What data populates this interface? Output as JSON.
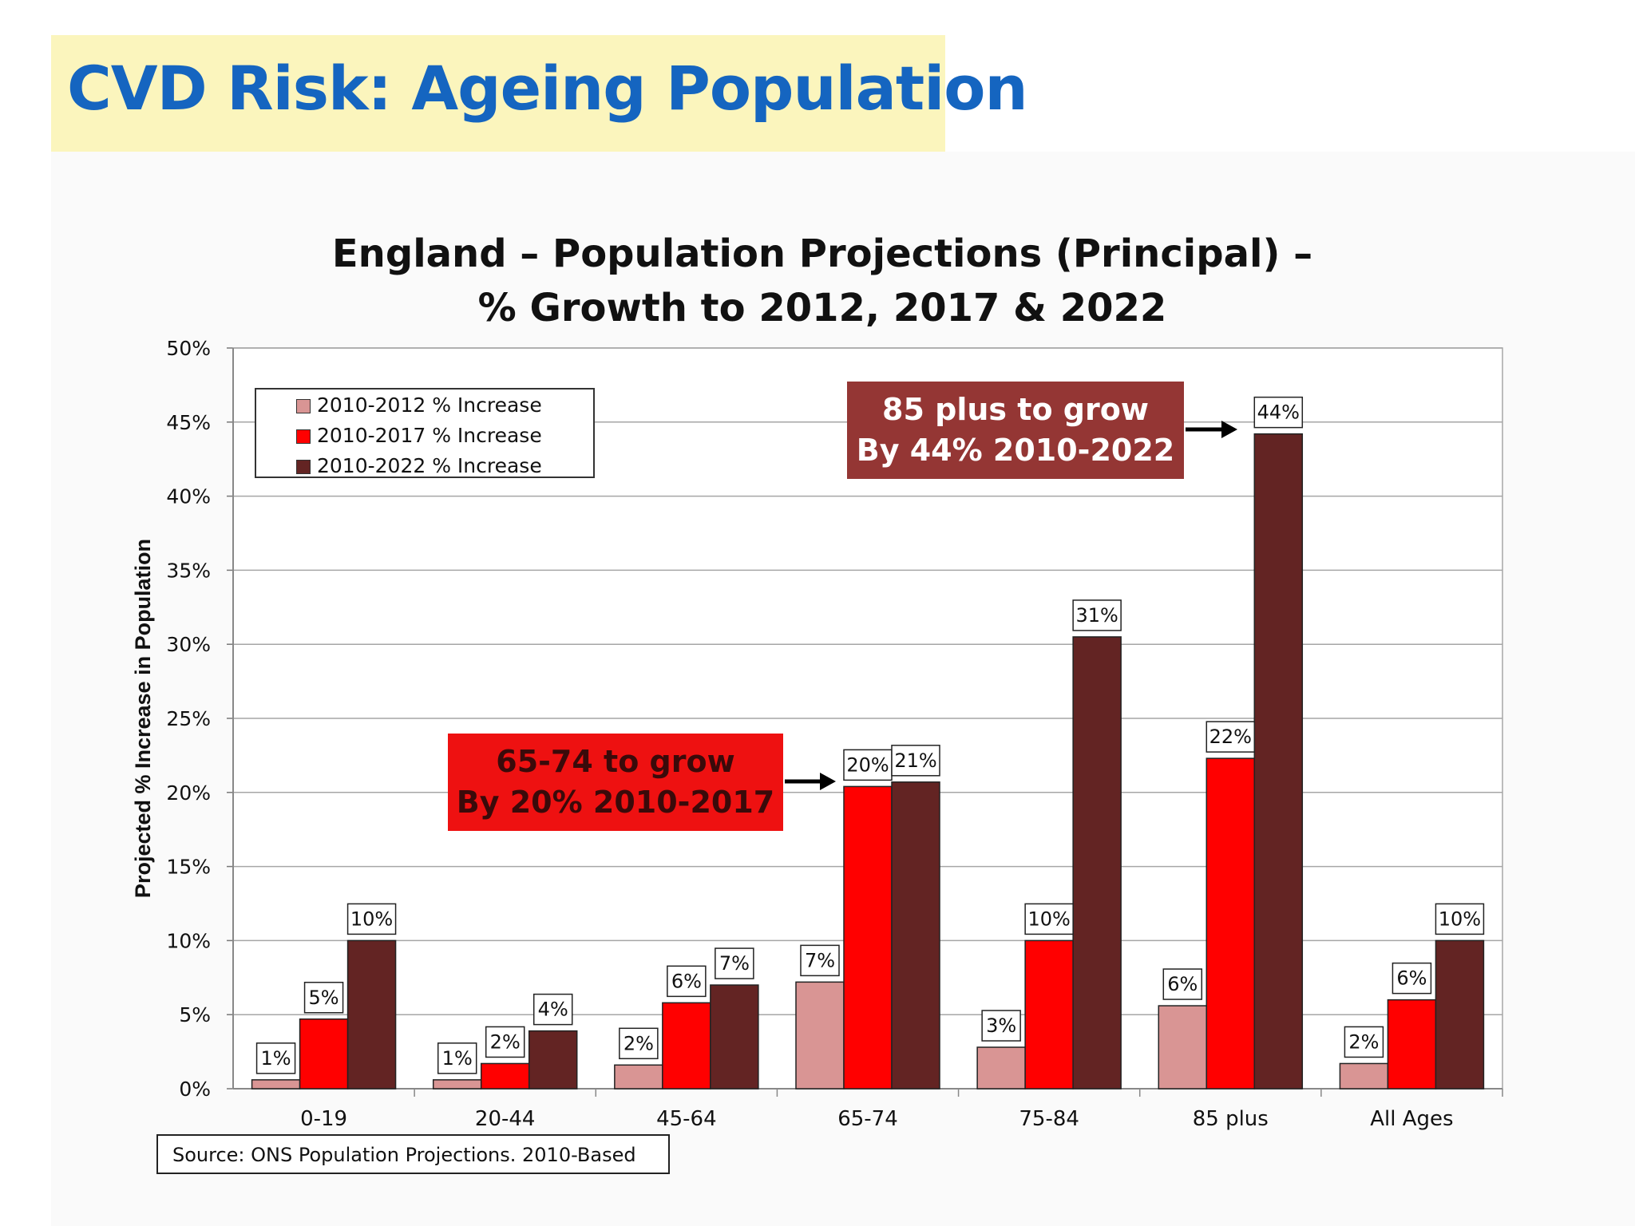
{
  "slide": {
    "title": "CVD Risk: Ageing Population"
  },
  "chart_data": {
    "type": "bar",
    "title_line1": "England – Population Projections (Principal) –",
    "title_line2": "% Growth to 2012, 2017 & 2022",
    "ylabel": "Projected % Increase in Population",
    "xlabel": "",
    "ylim": [
      0,
      50
    ],
    "ytick_labels": [
      "0%",
      "5%",
      "10%",
      "15%",
      "20%",
      "25%",
      "30%",
      "35%",
      "40%",
      "45%",
      "50%"
    ],
    "grid": true,
    "legend_position": "top-left",
    "categories": [
      "0-19",
      "20-44",
      "45-64",
      "65-74",
      "75-84",
      "85 plus",
      "All Ages"
    ],
    "series": [
      {
        "name": "2010-2012 % Increase",
        "color": "#d99594",
        "values": [
          0.6,
          0.6,
          1.6,
          7.2,
          2.8,
          5.6,
          1.7
        ],
        "labels": [
          "1%",
          "1%",
          "2%",
          "7%",
          "3%",
          "6%",
          "2%"
        ]
      },
      {
        "name": "2010-2017 % Increase",
        "color": "#ff0000",
        "values": [
          4.7,
          1.7,
          5.8,
          20.4,
          10.0,
          22.3,
          6.0
        ],
        "labels": [
          "5%",
          "2%",
          "6%",
          "20%",
          "10%",
          "22%",
          "6%"
        ]
      },
      {
        "name": "2010-2022 % Increase",
        "color": "#632423",
        "values": [
          10.0,
          3.9,
          7.0,
          20.7,
          30.5,
          44.2,
          10.0
        ],
        "labels": [
          "10%",
          "4%",
          "7%",
          "21%",
          "31%",
          "44%",
          "10%"
        ]
      }
    ],
    "annotations": [
      {
        "line1": "85 plus to grow",
        "line2": "By 44% 2010-2022",
        "color": "#943634"
      },
      {
        "line1": "65-74 to grow",
        "line2": "By 20% 2010-2017",
        "color": "#ee1111"
      }
    ],
    "source": "Source: ONS Population Projections. 2010-Based"
  }
}
